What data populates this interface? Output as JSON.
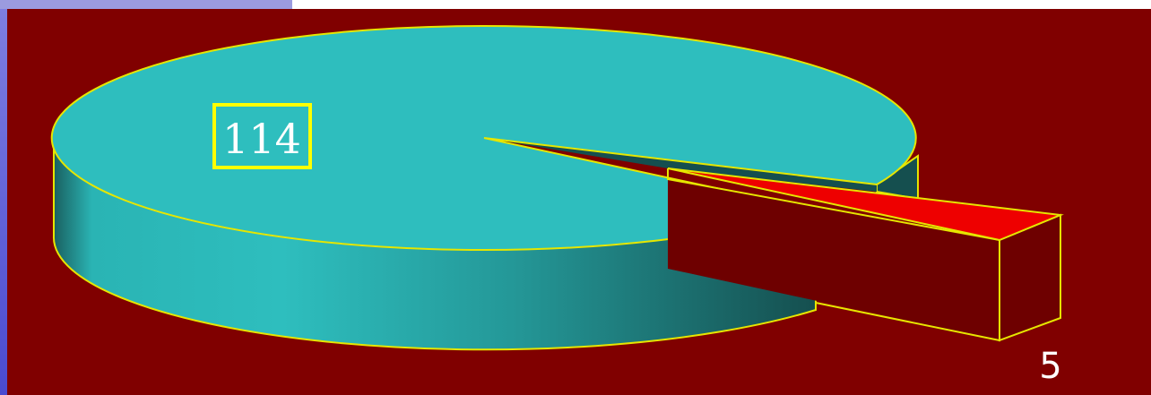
{
  "chart_data": {
    "type": "pie",
    "style": "3d-exploded",
    "slices": [
      {
        "value": 114,
        "label": "114",
        "color": "#2ebebe",
        "label_boxed": true
      },
      {
        "value": 5,
        "label": "5",
        "color": "#ee0000",
        "exploded": true
      }
    ]
  },
  "colors": {
    "panel_background": "#800000",
    "outline": "#e6e600",
    "large_slice_top": "#2ebebe",
    "large_slice_side_dark": "#154f4f",
    "small_slice_top": "#ee0000",
    "small_slice_side": "#6e0000",
    "label_box_border": "#ffff00"
  }
}
